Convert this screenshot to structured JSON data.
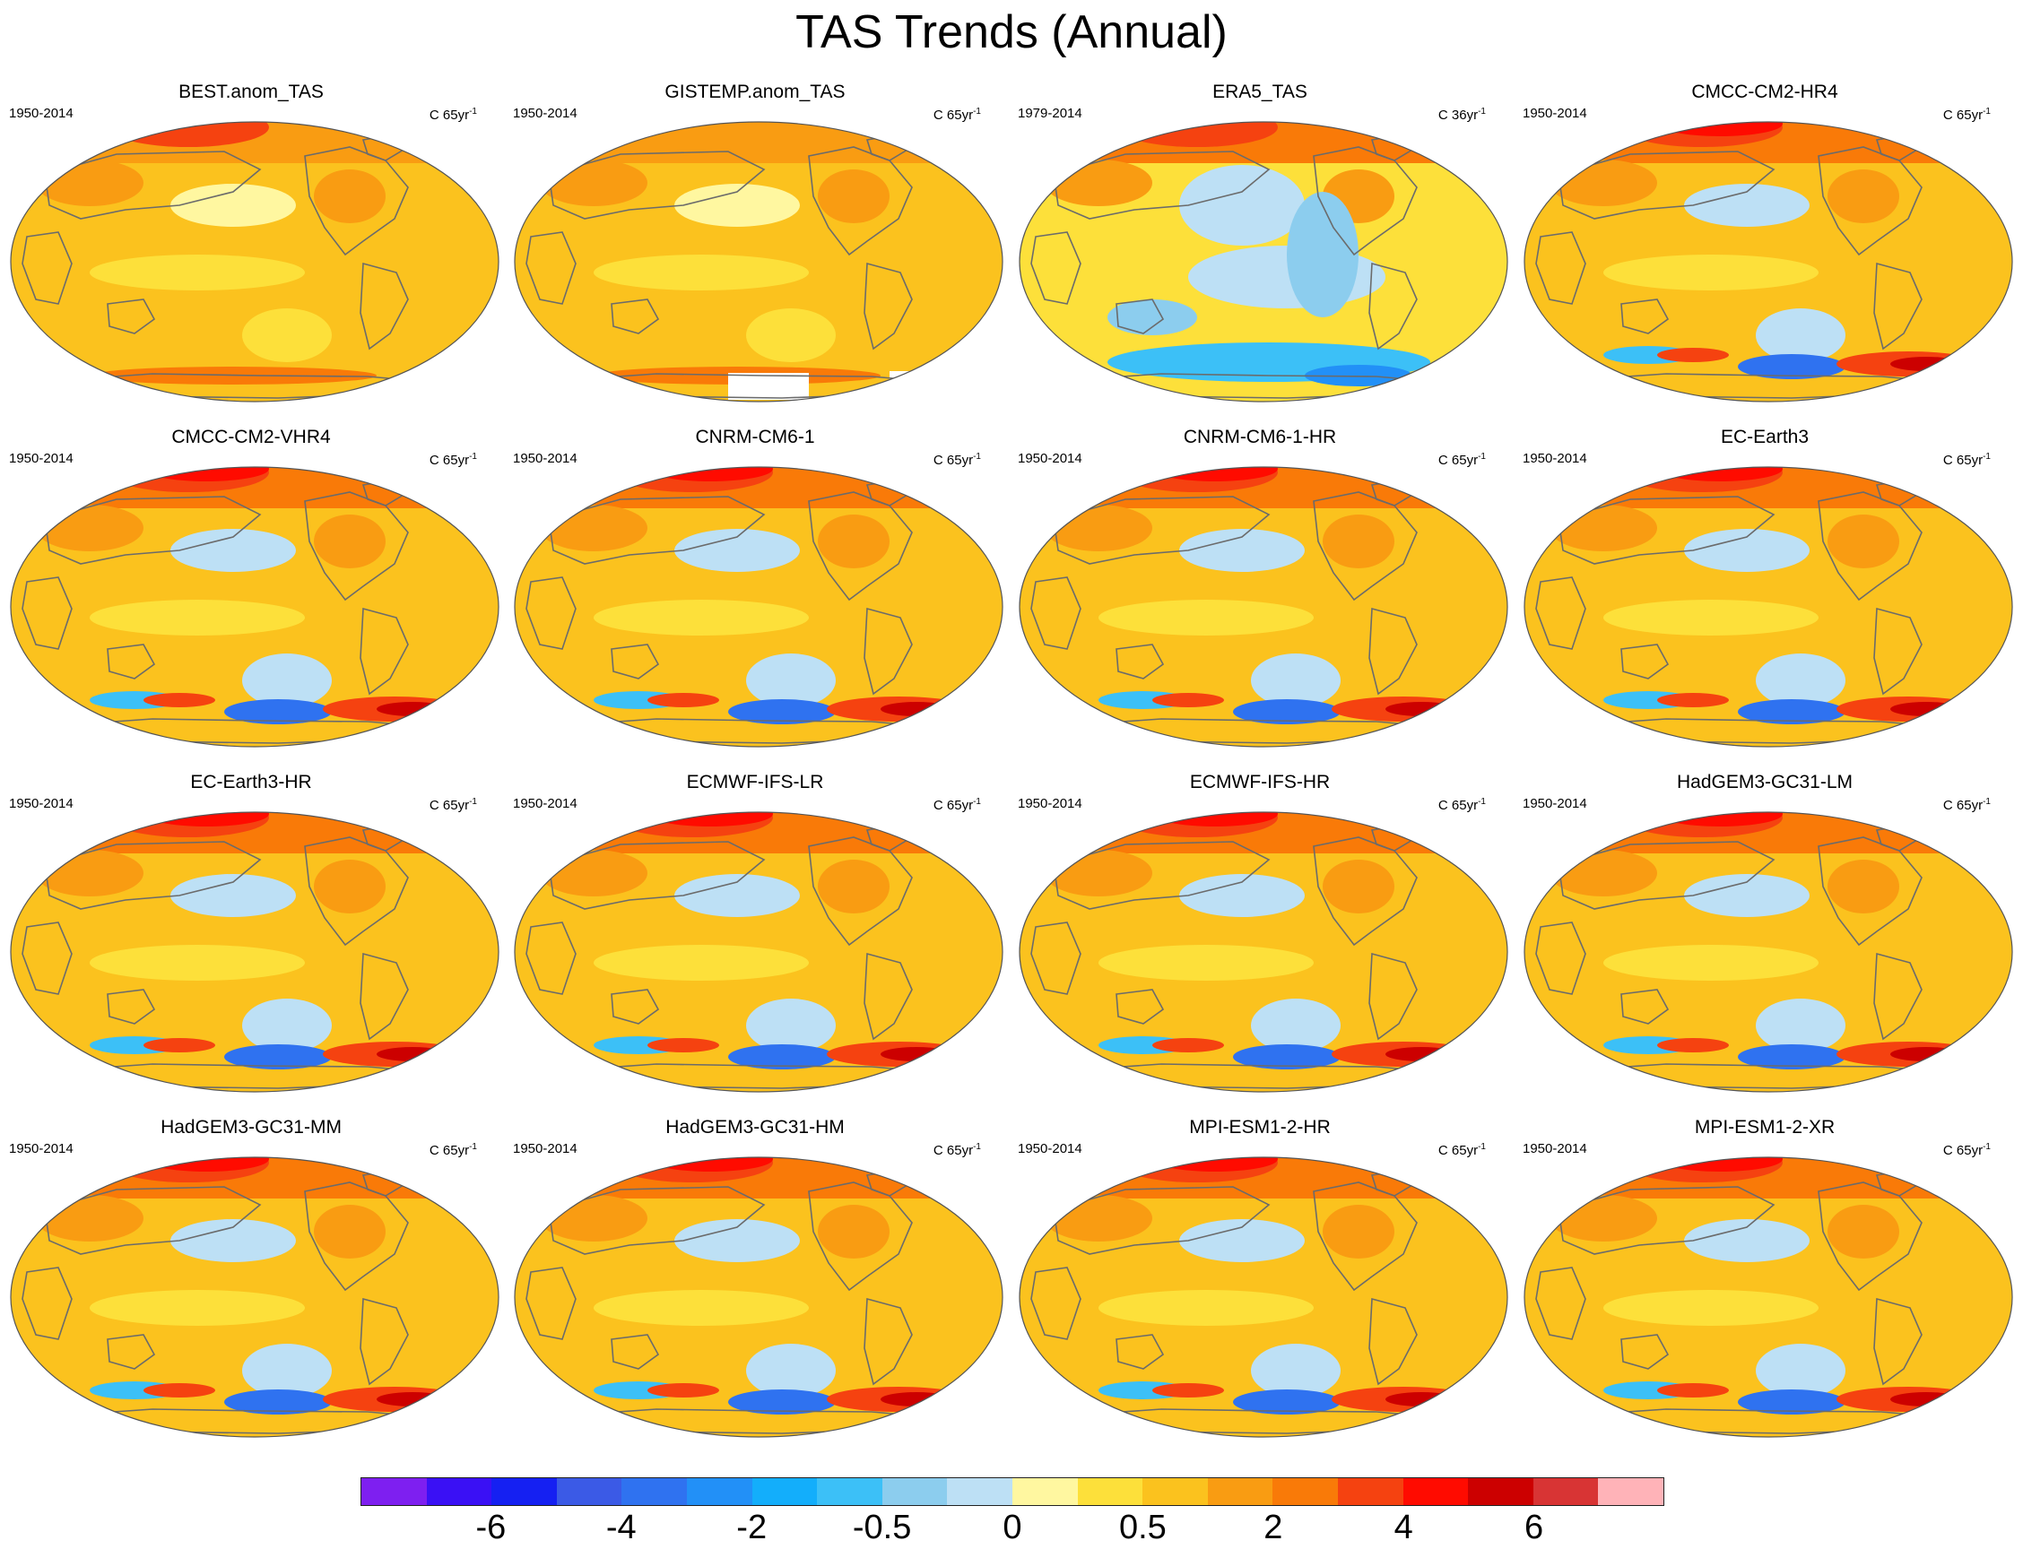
{
  "title": "TAS Trends (Annual)",
  "panels": [
    {
      "name": "BEST.anom_TAS",
      "period": "1950-2014",
      "units": "C 65yr",
      "units_exp": "-1",
      "variant": "obs"
    },
    {
      "name": "GISTEMP.anom_TAS",
      "period": "1950-2014",
      "units": "C 65yr",
      "units_exp": "-1",
      "variant": "obs-missing"
    },
    {
      "name": "ERA5_TAS",
      "period": "1979-2014",
      "units": "C 36yr",
      "units_exp": "-1",
      "variant": "reanalysis"
    },
    {
      "name": "CMCC-CM2-HR4",
      "period": "1950-2014",
      "units": "C 65yr",
      "units_exp": "-1",
      "variant": "model"
    },
    {
      "name": "CMCC-CM2-VHR4",
      "period": "1950-2014",
      "units": "C 65yr",
      "units_exp": "-1",
      "variant": "model"
    },
    {
      "name": "CNRM-CM6-1",
      "period": "1950-2014",
      "units": "C 65yr",
      "units_exp": "-1",
      "variant": "model"
    },
    {
      "name": "CNRM-CM6-1-HR",
      "period": "1950-2014",
      "units": "C 65yr",
      "units_exp": "-1",
      "variant": "model"
    },
    {
      "name": "EC-Earth3",
      "period": "1950-2014",
      "units": "C 65yr",
      "units_exp": "-1",
      "variant": "model"
    },
    {
      "name": "EC-Earth3-HR",
      "period": "1950-2014",
      "units": "C 65yr",
      "units_exp": "-1",
      "variant": "model"
    },
    {
      "name": "ECMWF-IFS-LR",
      "period": "1950-2014",
      "units": "C 65yr",
      "units_exp": "-1",
      "variant": "model"
    },
    {
      "name": "ECMWF-IFS-HR",
      "period": "1950-2014",
      "units": "C 65yr",
      "units_exp": "-1",
      "variant": "model"
    },
    {
      "name": "HadGEM3-GC31-LM",
      "period": "1950-2014",
      "units": "C 65yr",
      "units_exp": "-1",
      "variant": "model"
    },
    {
      "name": "HadGEM3-GC31-MM",
      "period": "1950-2014",
      "units": "C 65yr",
      "units_exp": "-1",
      "variant": "model"
    },
    {
      "name": "HadGEM3-GC31-HM",
      "period": "1950-2014",
      "units": "C 65yr",
      "units_exp": "-1",
      "variant": "model"
    },
    {
      "name": "MPI-ESM1-2-HR",
      "period": "1950-2014",
      "units": "C 65yr",
      "units_exp": "-1",
      "variant": "model"
    },
    {
      "name": "MPI-ESM1-2-XR",
      "period": "1950-2014",
      "units": "C 65yr",
      "units_exp": "-1",
      "variant": "model"
    }
  ],
  "colorbar": {
    "colors": [
      "#7e1ff0",
      "#3a10f5",
      "#1520f2",
      "#3b5ae6",
      "#2f72f0",
      "#2290f7",
      "#13aefb",
      "#3cc0f7",
      "#8ccdee",
      "#bde0f5",
      "#fff7a0",
      "#fde03a",
      "#fbc21e",
      "#f99c12",
      "#f97a08",
      "#f54210",
      "#ff0b00",
      "#cc0000",
      "#d83434",
      "#ffb3b8"
    ],
    "labels": [
      "-6",
      "-4",
      "-2",
      "-0.5",
      "0",
      "0.5",
      "2",
      "4",
      "6"
    ]
  }
}
